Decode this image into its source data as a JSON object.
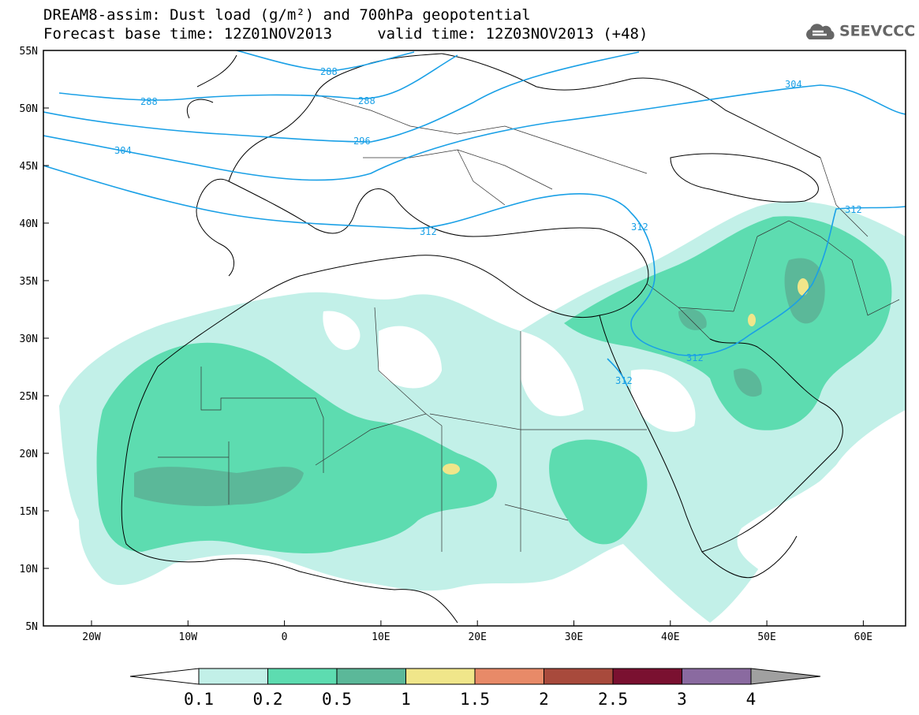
{
  "title": {
    "line1": "DREAM8-assim: Dust load (g/m²) and 700hPa geopotential",
    "line2": "Forecast base time: 12Z01NOV2013     valid time: 12Z03NOV2013 (+48)"
  },
  "logo": {
    "text": "SEEVCCC",
    "icon": "cloud-icon"
  },
  "map": {
    "lat_labels": [
      "55N",
      "50N",
      "45N",
      "40N",
      "35N",
      "30N",
      "25N",
      "20N",
      "15N",
      "10N",
      "5N"
    ],
    "lon_labels": [
      "20W",
      "10W",
      "0",
      "10E",
      "20E",
      "30E",
      "40E",
      "50E",
      "60E"
    ],
    "contour_labels": [
      "288",
      "288",
      "288",
      "296",
      "304",
      "304",
      "312",
      "312",
      "312",
      "312",
      "312"
    ]
  },
  "colorbar": {
    "labels": [
      "0.1",
      "0.2",
      "0.5",
      "1",
      "1.5",
      "2",
      "2.5",
      "3",
      "4"
    ],
    "colors": [
      "#ffffff",
      "#c2f0e8",
      "#5ddcb0",
      "#5bb899",
      "#f0e68a",
      "#e88a68",
      "#a84a3c",
      "#7a1030",
      "#8a6aa0",
      "#a0a0a0"
    ]
  },
  "colors": {
    "contour": "#1aa0e6",
    "dust_light": "#c2f0e8",
    "dust_mid": "#5ddcb0",
    "dust_dark": "#5bb899",
    "dust_peak": "#f0e68a"
  }
}
